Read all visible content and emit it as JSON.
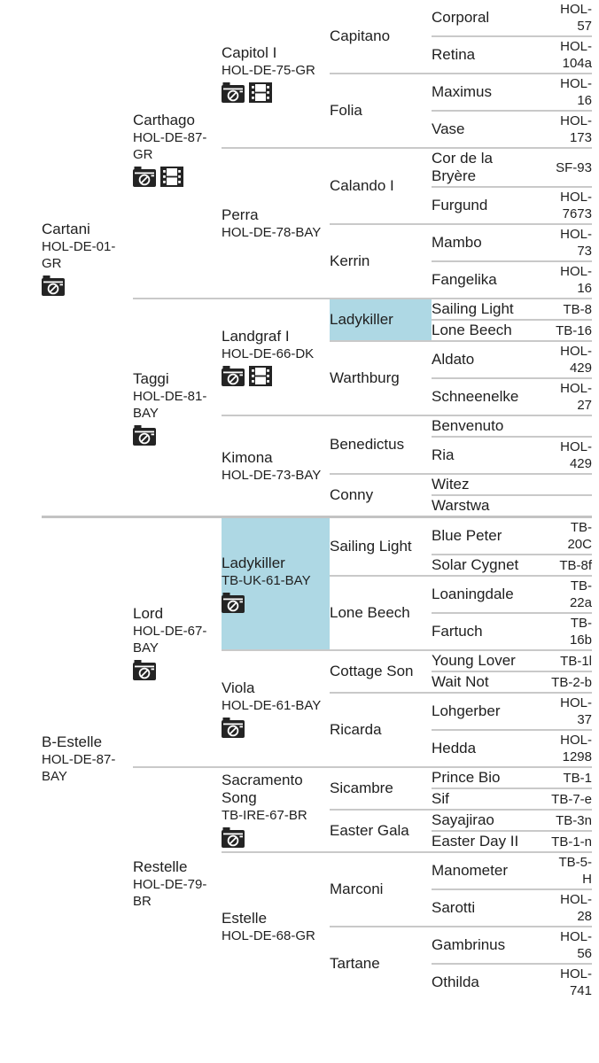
{
  "highlight_color": "#aed8e4",
  "divider_color": "#c9c9c9",
  "icon_legend": {
    "camera": "camera-icon",
    "film": "film-icon"
  },
  "pedigree": {
    "children": [
      {
        "name": "Cartani",
        "code": "HOL-DE-01-GR",
        "icons": [
          "camera"
        ],
        "children": [
          {
            "name": "Carthago",
            "code": "HOL-DE-87-GR",
            "icons": [
              "camera",
              "film"
            ],
            "children": [
              {
                "name": "Capitol I",
                "code": "HOL-DE-75-GR",
                "icons": [
                  "camera",
                  "film"
                ],
                "children": [
                  {
                    "name": "Capitano",
                    "children": [
                      {
                        "name": "Corporal",
                        "code": "HOL-57"
                      },
                      {
                        "name": "Retina",
                        "code": "HOL-104a"
                      }
                    ]
                  },
                  {
                    "name": "Folia",
                    "children": [
                      {
                        "name": "Maximus",
                        "code": "HOL-16"
                      },
                      {
                        "name": "Vase",
                        "code": "HOL-173"
                      }
                    ]
                  }
                ]
              },
              {
                "name": "Perra",
                "code": "HOL-DE-78-BAY",
                "children": [
                  {
                    "name": "Calando I",
                    "children": [
                      {
                        "name": "Cor de la Bryère",
                        "code": "SF-93"
                      },
                      {
                        "name": "Furgund",
                        "code": "HOL-7673"
                      }
                    ]
                  },
                  {
                    "name": "Kerrin",
                    "children": [
                      {
                        "name": "Mambo",
                        "code": "HOL-73"
                      },
                      {
                        "name": "Fangelika",
                        "code": "HOL-16"
                      }
                    ]
                  }
                ]
              }
            ]
          },
          {
            "name": "Taggi",
            "code": "HOL-DE-81-BAY",
            "icons": [
              "camera"
            ],
            "children": [
              {
                "name": "Landgraf I",
                "code": "HOL-DE-66-DK",
                "icons": [
                  "camera",
                  "film"
                ],
                "children": [
                  {
                    "name": "Ladykiller",
                    "highlight": true,
                    "children": [
                      {
                        "name": "Sailing Light",
                        "code": "TB-8"
                      },
                      {
                        "name": "Lone Beech",
                        "code": "TB-16"
                      }
                    ]
                  },
                  {
                    "name": "Warthburg",
                    "children": [
                      {
                        "name": "Aldato",
                        "code": "HOL-429"
                      },
                      {
                        "name": "Schneenelke",
                        "code": "HOL-27"
                      }
                    ]
                  }
                ]
              },
              {
                "name": "Kimona",
                "code": "HOL-DE-73-BAY",
                "children": [
                  {
                    "name": "Benedictus",
                    "children": [
                      {
                        "name": "Benvenuto"
                      },
                      {
                        "name": "Ria",
                        "code": "HOL-429"
                      }
                    ]
                  },
                  {
                    "name": "Conny",
                    "children": [
                      {
                        "name": "Witez"
                      },
                      {
                        "name": "Warstwa"
                      }
                    ]
                  }
                ]
              }
            ]
          }
        ]
      },
      {
        "name": "B-Estelle",
        "code": "HOL-DE-87-BAY",
        "children": [
          {
            "name": "Lord",
            "code": "HOL-DE-67-BAY",
            "icons": [
              "camera"
            ],
            "children": [
              {
                "name": "Ladykiller",
                "code": "TB-UK-61-BAY",
                "icons": [
                  "camera"
                ],
                "highlight": true,
                "children": [
                  {
                    "name": "Sailing Light",
                    "children": [
                      {
                        "name": "Blue Peter",
                        "code": "TB-20C"
                      },
                      {
                        "name": "Solar Cygnet",
                        "code": "TB-8f"
                      }
                    ]
                  },
                  {
                    "name": "Lone Beech",
                    "children": [
                      {
                        "name": "Loaningdale",
                        "code": "TB-22a"
                      },
                      {
                        "name": "Fartuch",
                        "code": "TB-16b"
                      }
                    ]
                  }
                ]
              },
              {
                "name": "Viola",
                "code": "HOL-DE-61-BAY",
                "icons": [
                  "camera"
                ],
                "children": [
                  {
                    "name": "Cottage Son",
                    "children": [
                      {
                        "name": "Young Lover",
                        "code": "TB-1l"
                      },
                      {
                        "name": "Wait Not",
                        "code": "TB-2-b"
                      }
                    ]
                  },
                  {
                    "name": "Ricarda",
                    "children": [
                      {
                        "name": "Lohgerber",
                        "code": "HOL-37"
                      },
                      {
                        "name": "Hedda",
                        "code": "HOL-1298"
                      }
                    ]
                  }
                ]
              }
            ]
          },
          {
            "name": "Restelle",
            "code": "HOL-DE-79-BR",
            "children": [
              {
                "name": "Sacramento Song",
                "code": "TB-IRE-67-BR",
                "icons": [
                  "camera"
                ],
                "children": [
                  {
                    "name": "Sicambre",
                    "children": [
                      {
                        "name": "Prince Bio",
                        "code": "TB-1"
                      },
                      {
                        "name": "Sif",
                        "code": "TB-7-e"
                      }
                    ]
                  },
                  {
                    "name": "Easter Gala",
                    "children": [
                      {
                        "name": "Sayajirao",
                        "code": "TB-3n"
                      },
                      {
                        "name": "Easter Day II",
                        "code": "TB-1-n"
                      }
                    ]
                  }
                ]
              },
              {
                "name": "Estelle",
                "code": "HOL-DE-68-GR",
                "children": [
                  {
                    "name": "Marconi",
                    "children": [
                      {
                        "name": "Manometer",
                        "code": "TB-5-H"
                      },
                      {
                        "name": "Sarotti",
                        "code": "HOL-28"
                      }
                    ]
                  },
                  {
                    "name": "Tartane",
                    "children": [
                      {
                        "name": "Gambrinus",
                        "code": "HOL-56"
                      },
                      {
                        "name": "Othilda",
                        "code": "HOL-741"
                      }
                    ]
                  }
                ]
              }
            ]
          }
        ]
      }
    ]
  }
}
